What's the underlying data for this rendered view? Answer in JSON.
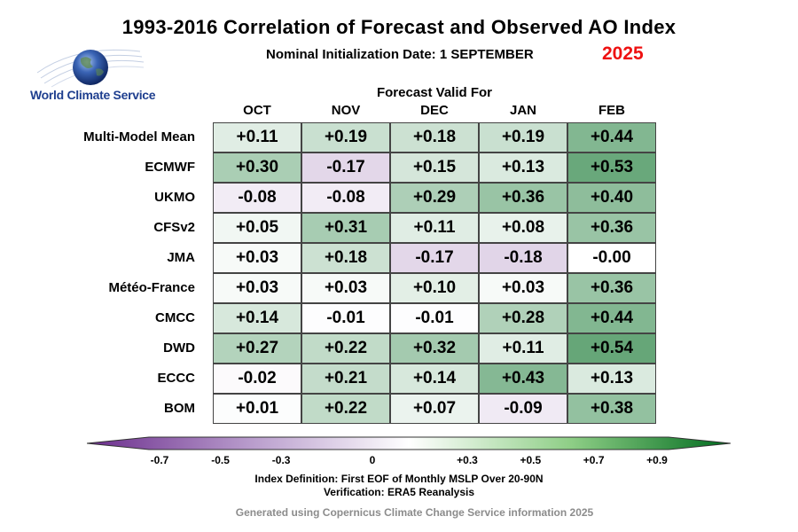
{
  "title": "1993-2016 Correlation of Forecast and Observed AO Index",
  "subtitle": "Nominal Initialization Date: 1 SEPTEMBER",
  "year": "2025",
  "logo_text": "World Climate Service",
  "header": "Forecast Valid For",
  "chart_data": {
    "type": "heatmap",
    "title": "1993-2016 Correlation of Forecast and Observed AO Index",
    "columns": [
      "OCT",
      "NOV",
      "DEC",
      "JAN",
      "FEB"
    ],
    "rows": [
      "Multi-Model Mean",
      "ECMWF",
      "UKMO",
      "CFSv2",
      "JMA",
      "Météo-France",
      "CMCC",
      "DWD",
      "ECCC",
      "BOM"
    ],
    "values": [
      [
        0.11,
        0.19,
        0.18,
        0.19,
        0.44
      ],
      [
        0.3,
        -0.17,
        0.15,
        0.13,
        0.53
      ],
      [
        -0.08,
        -0.08,
        0.29,
        0.36,
        0.4
      ],
      [
        0.05,
        0.31,
        0.11,
        0.08,
        0.36
      ],
      [
        0.03,
        0.18,
        -0.17,
        -0.18,
        -0.0
      ],
      [
        0.03,
        0.03,
        0.1,
        0.03,
        0.36
      ],
      [
        0.14,
        -0.01,
        -0.01,
        0.28,
        0.44
      ],
      [
        0.27,
        0.22,
        0.32,
        0.11,
        0.54
      ],
      [
        -0.02,
        0.21,
        0.14,
        0.43,
        0.13
      ],
      [
        0.01,
        0.22,
        0.07,
        -0.09,
        0.38
      ]
    ],
    "labels": [
      [
        "+0.11",
        "+0.19",
        "+0.18",
        "+0.19",
        "+0.44"
      ],
      [
        "+0.30",
        "-0.17",
        "+0.15",
        "+0.13",
        "+0.53"
      ],
      [
        "-0.08",
        "-0.08",
        "+0.29",
        "+0.36",
        "+0.40"
      ],
      [
        "+0.05",
        "+0.31",
        "+0.11",
        "+0.08",
        "+0.36"
      ],
      [
        "+0.03",
        "+0.18",
        "-0.17",
        "-0.18",
        "-0.00"
      ],
      [
        "+0.03",
        "+0.03",
        "+0.10",
        "+0.03",
        "+0.36"
      ],
      [
        "+0.14",
        "-0.01",
        "-0.01",
        "+0.28",
        "+0.44"
      ],
      [
        "+0.27",
        "+0.22",
        "+0.32",
        "+0.11",
        "+0.54"
      ],
      [
        "-0.02",
        "+0.21",
        "+0.14",
        "+0.43",
        "+0.13"
      ],
      [
        "+0.01",
        "+0.22",
        "+0.07",
        "-0.09",
        "+0.38"
      ]
    ],
    "colorbar": {
      "min": -0.9,
      "max": 0.9,
      "ticks": [
        -0.7,
        -0.5,
        -0.3,
        0,
        0.3,
        0.5,
        0.7,
        0.9
      ],
      "tick_labels": [
        "-0.7",
        "-0.5",
        "-0.3",
        "0",
        "+0.3",
        "+0.5",
        "+0.7",
        "+0.9"
      ],
      "negative_color": "#6a2c8c",
      "zero_color": "#ffffff",
      "positive_color": "#006b1e"
    }
  },
  "footer": {
    "definition": "Index Definition: First EOF of Monthly MSLP Over 20-90N",
    "verification": "Verification: ERA5 Reanalysis",
    "credit": "Generated using Copernicus Climate Change Service information 2025"
  }
}
